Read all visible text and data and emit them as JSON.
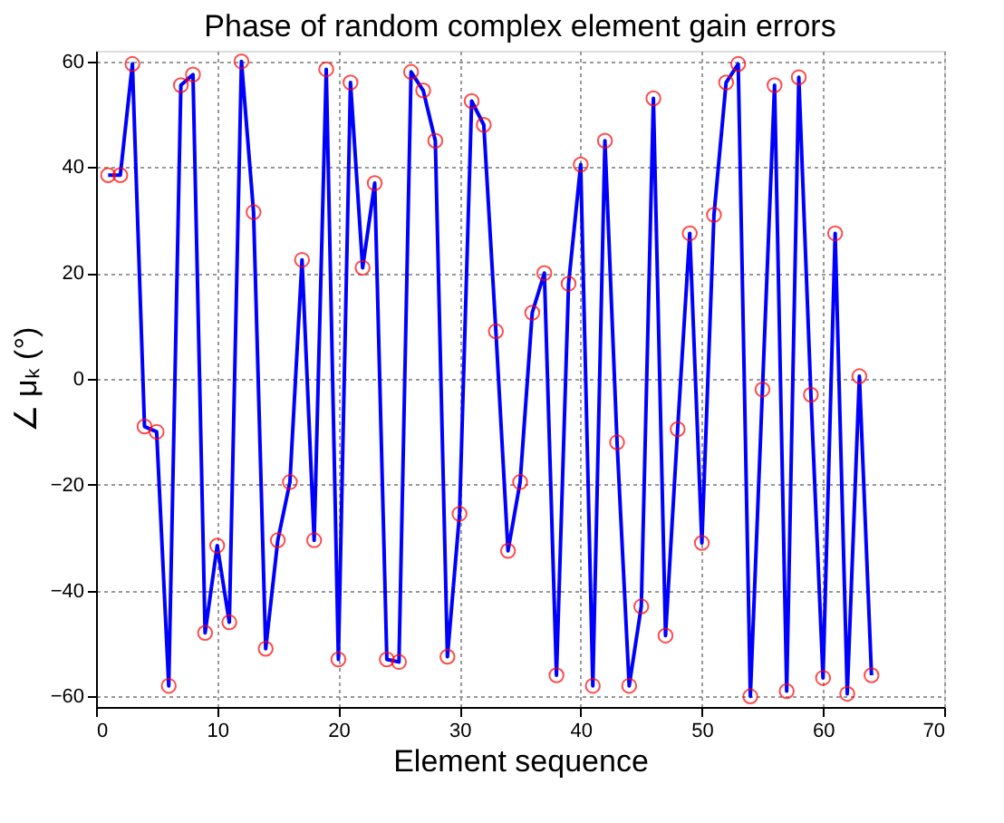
{
  "chart_data": {
    "type": "line",
    "title": "Phase of random complex element gain errors",
    "xlabel": "Element sequence",
    "ylabel": "∠ μₖ (°)",
    "x": [
      1,
      2,
      3,
      4,
      5,
      6,
      7,
      8,
      9,
      10,
      11,
      12,
      13,
      14,
      15,
      16,
      17,
      18,
      19,
      20,
      21,
      22,
      23,
      24,
      25,
      26,
      27,
      28,
      29,
      30,
      31,
      32,
      33,
      34,
      35,
      36,
      37,
      38,
      39,
      40,
      41,
      42,
      43,
      44,
      45,
      46,
      47,
      48,
      49,
      50,
      51,
      52,
      53,
      54,
      55,
      56,
      57,
      58,
      59,
      60,
      61,
      62,
      63,
      64
    ],
    "series": [
      {
        "color": "#0000ff",
        "values": [
          38.5,
          38.5,
          59.5,
          -9,
          -10,
          -58,
          55.5,
          57.5,
          -48,
          -31.5,
          -46,
          60,
          31.5,
          -51,
          -30.5,
          -19.5,
          22.5,
          -30.5,
          58.5,
          -53,
          56,
          21,
          37,
          -53,
          -53.5,
          58,
          54.5,
          45,
          -52.5,
          -25.5,
          52.5,
          48,
          9,
          -32.5,
          -19.5,
          12.5,
          20,
          -56,
          18,
          40.5,
          -58,
          45,
          -12,
          -58,
          -43,
          53,
          -48.5,
          -9.5,
          27.5,
          -31,
          31,
          56,
          59.5,
          -60,
          -2,
          55.5,
          -59,
          57,
          -3,
          -56.5,
          27.5,
          -59.5,
          0.5,
          -56
        ]
      }
    ],
    "xlim": [
      0,
      70
    ],
    "xticks": [
      0,
      10,
      20,
      30,
      40,
      50,
      60,
      70
    ],
    "ylim": [
      -62,
      62
    ],
    "yticks": [
      -60,
      -40,
      -20,
      0,
      20,
      40,
      60
    ],
    "grid": true,
    "marker": "circle",
    "line_style": "solid"
  }
}
